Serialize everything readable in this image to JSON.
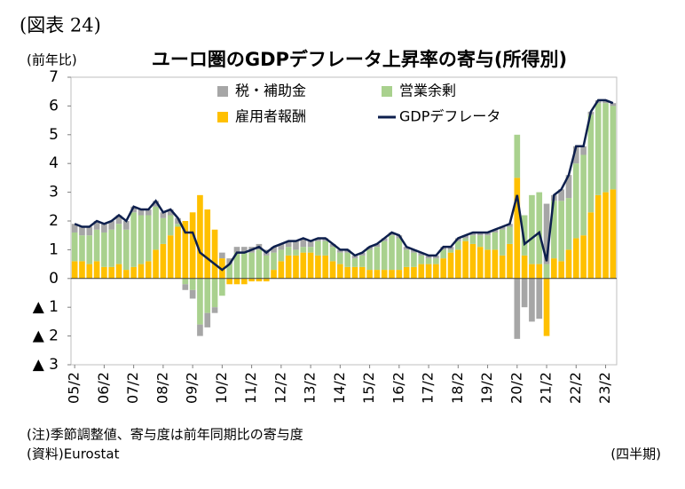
{
  "chart_data": {
    "type": "bar",
    "header": "(図表 24)",
    "title": "ユーロ圏のGDPデフレータ上昇率の寄与(所得別)",
    "y_label": "(前年比)",
    "x_label": "(四半期)",
    "notes": [
      "(注)季節調整値、寄与度は前年同期比の寄与度",
      "(資料)Eurostat"
    ],
    "categories": [
      "05/2",
      null,
      null,
      null,
      "06/2",
      null,
      null,
      null,
      "07/2",
      null,
      null,
      null,
      "08/2",
      null,
      null,
      null,
      "09/2",
      null,
      null,
      null,
      "10/2",
      null,
      null,
      null,
      "11/2",
      null,
      null,
      null,
      "12/2",
      null,
      null,
      null,
      "13/2",
      null,
      null,
      null,
      "14/2",
      null,
      null,
      null,
      "15/2",
      null,
      null,
      null,
      "16/2",
      null,
      null,
      null,
      "17/2",
      null,
      null,
      null,
      "18/2",
      null,
      null,
      null,
      "19/2",
      null,
      null,
      null,
      "20/2",
      null,
      null,
      null,
      "21/2",
      null,
      null,
      null,
      "22/2",
      null,
      null,
      null,
      "23/2",
      null
    ],
    "series": [
      {
        "name": "税・補助金",
        "color": "#a6a6a6",
        "type": "bar",
        "values": [
          0.3,
          0.3,
          0.3,
          0.3,
          0.3,
          0.3,
          0.3,
          0.3,
          0.2,
          0.2,
          0.2,
          0.2,
          0.2,
          0.2,
          0.2,
          -0.2,
          -0.3,
          -0.4,
          -0.5,
          -0.2,
          0.2,
          0.2,
          0.2,
          0.2,
          0.2,
          0.2,
          0.2,
          0.2,
          0.2,
          0.2,
          0.3,
          0.3,
          0.2,
          0.1,
          0.1,
          0.1,
          0.1,
          0.1,
          0.1,
          0.1,
          0.1,
          0.1,
          0.1,
          0.1,
          0.1,
          0.1,
          0.1,
          0.1,
          0.1,
          0.1,
          0.1,
          0.1,
          0.1,
          0.1,
          0.1,
          0.1,
          0.1,
          0.1,
          0.1,
          0.1,
          -2.1,
          -1.0,
          -1.5,
          -1.4,
          2.1,
          0.2,
          0.4,
          0.8,
          0.6,
          0.3,
          0.1,
          0.1,
          0.1,
          0.1
        ]
      },
      {
        "name": "営業余剰",
        "color": "#a9d18e",
        "type": "bar",
        "values": [
          1.0,
          0.9,
          1.0,
          1.1,
          1.2,
          1.3,
          1.4,
          1.4,
          1.9,
          1.7,
          1.6,
          1.5,
          0.9,
          0.7,
          0.1,
          -0.2,
          -0.4,
          -1.6,
          -1.2,
          -1.0,
          -0.6,
          0.5,
          0.9,
          0.9,
          0.9,
          1.0,
          0.8,
          0.6,
          0.4,
          0.3,
          0.2,
          0.2,
          0.2,
          0.5,
          0.5,
          0.5,
          0.4,
          0.5,
          0.3,
          0.4,
          0.7,
          0.8,
          1.0,
          1.2,
          1.1,
          0.6,
          0.5,
          0.3,
          0.2,
          0.2,
          0.3,
          0.1,
          0.3,
          0.1,
          0.3,
          0.4,
          0.5,
          0.6,
          0.9,
          0.6,
          1.5,
          1.4,
          2.4,
          2.5,
          0.5,
          2.0,
          2.1,
          1.8,
          2.6,
          2.8,
          3.4,
          3.2,
          3.1,
          2.9
        ]
      },
      {
        "name": "雇用者報酬",
        "color": "#ffc000",
        "type": "bar",
        "values": [
          0.6,
          0.6,
          0.5,
          0.6,
          0.4,
          0.4,
          0.5,
          0.3,
          0.4,
          0.5,
          0.6,
          1.0,
          1.2,
          1.5,
          1.8,
          2.0,
          2.3,
          2.9,
          2.4,
          1.7,
          0.7,
          -0.2,
          -0.2,
          -0.2,
          -0.1,
          -0.1,
          -0.1,
          0.3,
          0.6,
          0.8,
          0.8,
          0.9,
          0.9,
          0.8,
          0.8,
          0.6,
          0.5,
          0.4,
          0.4,
          0.4,
          0.3,
          0.3,
          0.3,
          0.3,
          0.3,
          0.4,
          0.4,
          0.5,
          0.5,
          0.5,
          0.7,
          0.9,
          1.0,
          1.3,
          1.2,
          1.1,
          1.0,
          1.0,
          0.8,
          1.2,
          3.5,
          0.8,
          0.5,
          0.5,
          -2.0,
          0.7,
          0.6,
          1.0,
          1.4,
          1.5,
          2.3,
          2.9,
          3.0,
          3.1
        ]
      },
      {
        "name": "GDPデフレータ",
        "color": "#0d1f4d",
        "type": "line",
        "values": [
          1.9,
          1.8,
          1.8,
          2.0,
          1.9,
          2.0,
          2.2,
          2.0,
          2.5,
          2.4,
          2.4,
          2.7,
          2.3,
          2.4,
          2.1,
          1.6,
          1.6,
          0.9,
          0.7,
          0.5,
          0.3,
          0.5,
          0.9,
          0.9,
          1.0,
          1.1,
          0.9,
          1.1,
          1.2,
          1.3,
          1.3,
          1.4,
          1.3,
          1.4,
          1.4,
          1.2,
          1.0,
          1.0,
          0.8,
          0.9,
          1.1,
          1.2,
          1.4,
          1.6,
          1.5,
          1.1,
          1.0,
          0.9,
          0.8,
          0.8,
          1.1,
          1.1,
          1.4,
          1.5,
          1.6,
          1.6,
          1.6,
          1.7,
          1.8,
          1.9,
          2.9,
          1.2,
          1.4,
          1.6,
          0.6,
          2.9,
          3.1,
          3.6,
          4.6,
          4.6,
          5.8,
          6.2,
          6.2,
          6.1
        ]
      }
    ],
    "ylim": [
      -3,
      7
    ],
    "yticks": [
      {
        "value": -3,
        "label": "▲ 3"
      },
      {
        "value": -2,
        "label": "▲ 2"
      },
      {
        "value": -1,
        "label": "▲ 1"
      },
      0,
      1,
      2,
      3,
      4,
      5,
      6,
      7
    ],
    "grid": false
  }
}
